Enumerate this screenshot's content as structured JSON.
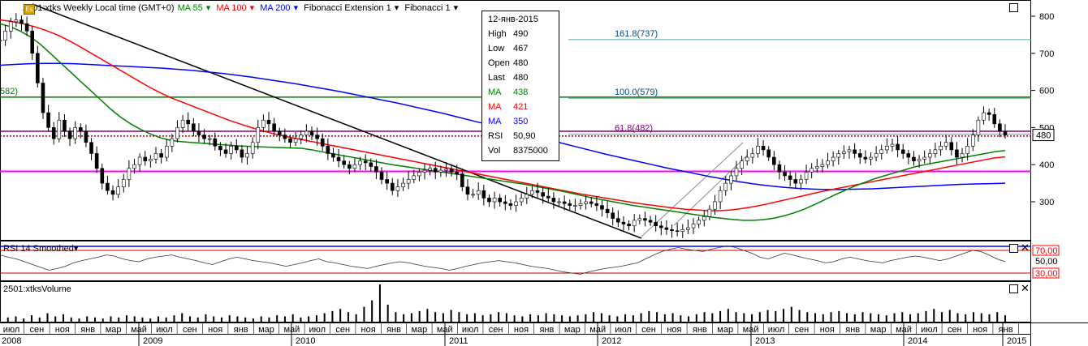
{
  "header": {
    "instrument": "2501:xtks Weekly Local time (GMT+0)",
    "ma55": "MA 55",
    "ma100": "MA 100",
    "ma200": "MA 200",
    "fib_ext": "Fibonacci Extension 1",
    "fib": "Fibonacci 1",
    "logo": "Es"
  },
  "tooltip": {
    "date": "12-янв-2015",
    "rows": [
      {
        "label": "High",
        "value": "490"
      },
      {
        "label": "Low",
        "value": "467"
      },
      {
        "label": "Open",
        "value": "480"
      },
      {
        "label": "Last",
        "value": "480"
      },
      {
        "label": "MA",
        "value": "438"
      },
      {
        "label": "MA",
        "value": "421"
      },
      {
        "label": "MA",
        "value": "350"
      },
      {
        "label": "RSI",
        "value": "50,90"
      },
      {
        "label": "Vol",
        "value": "8375000"
      }
    ]
  },
  "colors": {
    "ma55": "#008000",
    "ma100": "#ff0000",
    "ma200": "#0000ff",
    "magenta": "#ff00ff",
    "fib": "#5ba8a8",
    "rsi_band": "#cc0000",
    "price": "#000000"
  },
  "chart_data": {
    "type": "line",
    "title": "2501:xtks Weekly Local time (GMT+0)",
    "y_ticks": [
      800,
      700,
      600,
      500,
      400,
      300
    ],
    "ylim": [
      170,
      840
    ],
    "last_price_label": "480",
    "level_label_left": "582)",
    "fib_levels": [
      {
        "label": "161.8(737)",
        "value": 737
      },
      {
        "label": "100.0(579)",
        "value": 579
      },
      {
        "label": "61.8(482)",
        "value": 482
      }
    ],
    "horizontal_lines": [
      {
        "value": 582,
        "color": "#008000"
      },
      {
        "value": 490,
        "color": "#800080"
      },
      {
        "value": 477,
        "color": "#990000",
        "dotted": true
      },
      {
        "value": 382,
        "color": "#ff00ff"
      },
      {
        "value": 180,
        "color": "#0000ff"
      }
    ],
    "price_weekly_close": [
      735,
      760,
      785,
      790,
      780,
      760,
      700,
      620,
      540,
      500,
      470,
      520,
      490,
      470,
      500,
      490,
      460,
      430,
      390,
      350,
      330,
      320,
      340,
      360,
      390,
      400,
      420,
      410,
      415,
      430,
      420,
      450,
      470,
      500,
      520,
      510,
      490,
      480,
      470,
      470,
      450,
      440,
      430,
      450,
      440,
      420,
      430,
      460,
      500,
      520,
      510,
      490,
      480,
      470,
      460,
      470,
      480,
      490,
      480,
      470,
      450,
      430,
      420,
      410,
      400,
      390,
      400,
      410,
      405,
      395,
      380,
      360,
      350,
      330,
      340,
      350,
      360,
      370,
      380,
      385,
      390,
      380,
      385,
      388,
      380,
      375,
      340,
      320,
      320,
      330,
      310,
      300,
      310,
      300,
      295,
      290,
      300,
      310,
      320,
      330,
      325,
      315,
      310,
      300,
      300,
      295,
      290,
      290,
      295,
      300,
      295,
      290,
      280,
      270,
      255,
      245,
      240,
      235,
      250,
      255,
      250,
      245,
      235,
      230,
      225,
      222,
      220,
      225,
      230,
      240,
      250,
      260,
      280,
      300,
      330,
      350,
      370,
      390,
      410,
      420,
      430,
      450,
      440,
      420,
      400,
      380,
      370,
      360,
      350,
      360,
      380,
      390,
      395,
      400,
      410,
      420,
      430,
      435,
      440,
      430,
      420,
      415,
      420,
      430,
      440,
      450,
      455,
      440,
      430,
      420,
      410,
      415,
      420,
      430,
      440,
      450,
      460,
      440,
      420,
      430,
      450,
      480,
      520,
      540,
      535,
      510,
      490,
      480
    ],
    "ma55": [
      780,
      772,
      760,
      745,
      725,
      700,
      675,
      650,
      625,
      600,
      575,
      550,
      528,
      510,
      495,
      482,
      472,
      465,
      462,
      460,
      458,
      456,
      454,
      452,
      450,
      449,
      448,
      447,
      446,
      445,
      444,
      440,
      435,
      430,
      425,
      420,
      415,
      410,
      405,
      400,
      396,
      392,
      388,
      384,
      380,
      376,
      372,
      368,
      364,
      360,
      356,
      352,
      348,
      343,
      338,
      333,
      328,
      322,
      316,
      310,
      305,
      300,
      295,
      290,
      286,
      282,
      278,
      274,
      270,
      266,
      262,
      258,
      255,
      252,
      250,
      250,
      252,
      256,
      262,
      270,
      280,
      292,
      305,
      318,
      330,
      342,
      352,
      362,
      370,
      378,
      386,
      394,
      400,
      405,
      410,
      415,
      420,
      425,
      430,
      435,
      438
    ],
    "ma100": [
      790,
      786,
      780,
      772,
      762,
      750,
      735,
      718,
      700,
      682,
      664,
      646,
      628,
      610,
      594,
      580,
      568,
      556,
      544,
      532,
      520,
      510,
      500,
      491,
      483,
      476,
      470,
      464,
      458,
      452,
      446,
      440,
      434,
      428,
      422,
      416,
      410,
      404,
      398,
      392,
      386,
      380,
      374,
      368,
      362,
      356,
      350,
      344,
      338,
      332,
      326,
      320,
      315,
      310,
      305,
      300,
      295,
      291,
      287,
      283,
      280,
      278,
      276,
      276,
      278,
      282,
      287,
      293,
      300,
      307,
      314,
      321,
      328,
      334,
      340,
      346,
      352,
      358,
      364,
      370,
      376,
      382,
      388,
      394,
      400,
      406,
      412,
      418,
      421
    ],
    "ma200": [
      668,
      670,
      672,
      673,
      673,
      672,
      670,
      668,
      666,
      664,
      662,
      660,
      657,
      654,
      650,
      646,
      641,
      636,
      630,
      624,
      618,
      611,
      604,
      597,
      589,
      581,
      573,
      565,
      556,
      547,
      538,
      528,
      518,
      508,
      498,
      488,
      478,
      468,
      458,
      448,
      438,
      428,
      419,
      410,
      401,
      392,
      384,
      376,
      368,
      361,
      354,
      348,
      343,
      339,
      336,
      334,
      333,
      333,
      334,
      335,
      337,
      339,
      341,
      343,
      345,
      347,
      348,
      349,
      350
    ],
    "rsi_levels": [
      70,
      50,
      30
    ],
    "rsi_labels": [
      "70,00",
      "50,00",
      "30,00"
    ],
    "rsi_title": "RSI 14 Smoothed",
    "rsi_values": [
      62,
      58,
      55,
      50,
      45,
      40,
      35,
      38,
      42,
      48,
      52,
      55,
      58,
      62,
      60,
      55,
      52,
      50,
      55,
      58,
      60,
      62,
      58,
      55,
      52,
      48,
      45,
      50,
      55,
      58,
      55,
      52,
      50,
      48,
      45,
      42,
      45,
      48,
      52,
      55,
      50,
      48,
      45,
      42,
      40,
      38,
      42,
      45,
      48,
      50,
      48,
      45,
      42,
      40,
      38,
      35,
      38,
      42,
      45,
      48,
      50,
      52,
      50,
      48,
      45,
      42,
      40,
      38,
      35,
      32,
      30,
      28,
      32,
      35,
      38,
      40,
      42,
      45,
      48,
      55,
      62,
      68,
      72,
      75,
      72,
      70,
      68,
      72,
      75,
      78,
      75,
      70,
      65,
      58,
      55,
      60,
      65,
      62,
      58,
      55,
      52,
      48,
      50,
      55,
      58,
      55,
      52,
      50,
      48,
      52,
      55,
      58,
      60,
      58,
      55,
      52,
      55,
      60,
      65,
      70,
      68,
      62,
      55,
      50
    ],
    "volume_title": "2501:xtksVolume",
    "volume": [
      3,
      4,
      5,
      3,
      6,
      4,
      8,
      5,
      7,
      4,
      3,
      5,
      4,
      3,
      5,
      4,
      6,
      5,
      4,
      3,
      5,
      4,
      6,
      8,
      5,
      4,
      7,
      5,
      4,
      6,
      5,
      4,
      3,
      5,
      4,
      6,
      5,
      7,
      4,
      5,
      6,
      8,
      10,
      12,
      9,
      7,
      14,
      20,
      35,
      16,
      9,
      7,
      8,
      10,
      12,
      9,
      8,
      11,
      9,
      7,
      8,
      6,
      7,
      9,
      8,
      6,
      5,
      7,
      6,
      8,
      7,
      6,
      5,
      6,
      7,
      9,
      8,
      6,
      5,
      7,
      6,
      8,
      10,
      9,
      7,
      8,
      6,
      5,
      7,
      9,
      8,
      10,
      12,
      9,
      8,
      7,
      9,
      11,
      10,
      12,
      14,
      11,
      9,
      8,
      7,
      9,
      10,
      8,
      7,
      9,
      8,
      7,
      6,
      8,
      9,
      7,
      8,
      10,
      12,
      9,
      11,
      8,
      7,
      9,
      8,
      7,
      9,
      6
    ],
    "x_month_labels": [
      "июл",
      "сен",
      "ноя",
      "янв",
      "мар",
      "май",
      "июл",
      "сен",
      "ноя",
      "янв",
      "мар",
      "май",
      "июл",
      "сен",
      "ноя",
      "янв",
      "мар",
      "май",
      "июл",
      "сен",
      "ноя",
      "янв",
      "мар",
      "май",
      "июл",
      "сен",
      "ноя",
      "янв",
      "мар",
      "май",
      "июл",
      "сен",
      "ноя",
      "янв",
      "мар",
      "май",
      "июл",
      "сен",
      "ноя",
      "янв"
    ],
    "x_year_labels": [
      "2008",
      "2009",
      "2010",
      "2011",
      "2012",
      "2013",
      "2014",
      "2015"
    ]
  }
}
